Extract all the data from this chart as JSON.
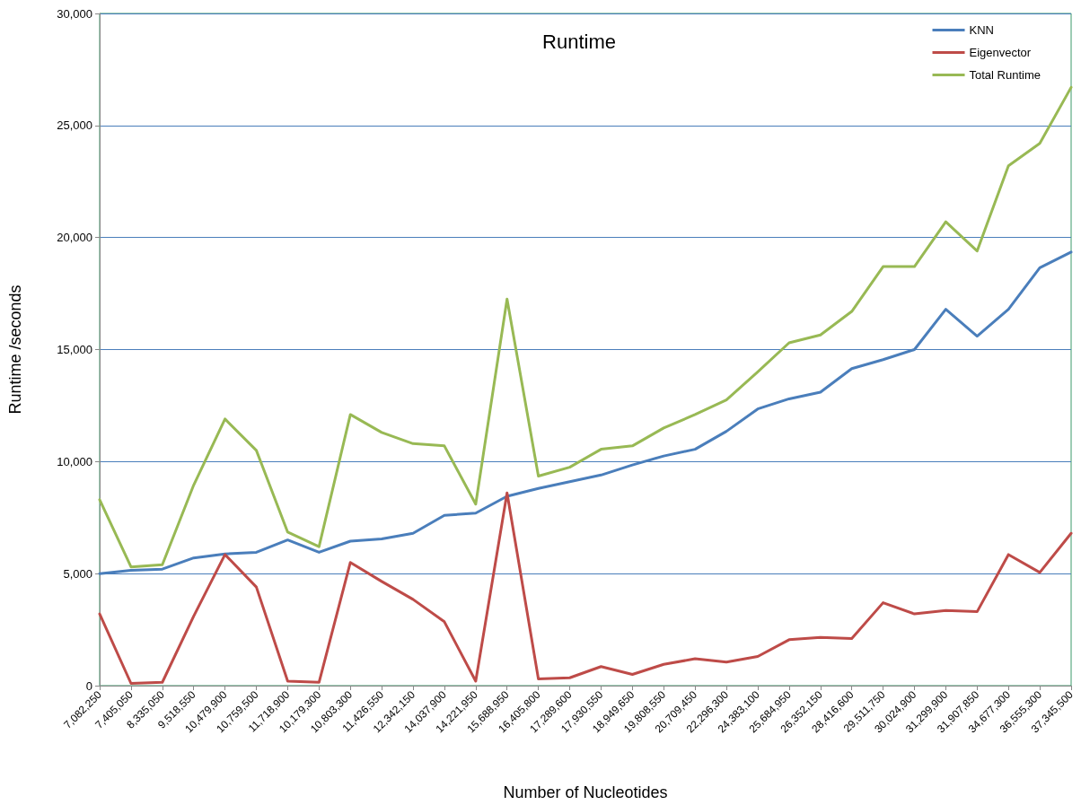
{
  "chart_data": {
    "type": "line",
    "title": "Runtime",
    "xlabel": "Number of Nucleotides",
    "ylabel": "Runtime /seconds",
    "categories": [
      "7,082,250",
      "7,405,050",
      "8,335,050",
      "9,518,550",
      "10,479,900",
      "10,759,500",
      "11,718,900",
      "10,179,300",
      "10,803,300",
      "11,426,550",
      "12,342,150",
      "14,037,900",
      "14,221,950",
      "15,688,950",
      "16,405,800",
      "17,289,600",
      "17,930,550",
      "18,949,650",
      "19,808,550",
      "20,709,450",
      "22,296,300",
      "24,383,100",
      "25,684,950",
      "26,352,150",
      "28,416,600",
      "29,511,750",
      "30,024,900",
      "31,299,900",
      "31,907,850",
      "34,677,300",
      "36,555,300",
      "37,345,500"
    ],
    "series": [
      {
        "name": "KNN",
        "color": "#4a7ebb",
        "values": [
          5000,
          5150,
          5200,
          5700,
          5880,
          5950,
          6500,
          5950,
          6450,
          6550,
          6800,
          7600,
          7700,
          8450,
          8800,
          9100,
          9400,
          9850,
          10250,
          10550,
          11350,
          12350,
          12800,
          13100,
          14150,
          14550,
          15000,
          16800,
          15600,
          16800,
          18650,
          19350
        ]
      },
      {
        "name": "Eigenvector",
        "color": "#be4b48",
        "values": [
          3200,
          100,
          150,
          3100,
          5850,
          4400,
          200,
          150,
          5500,
          4650,
          3850,
          2850,
          200,
          8600,
          300,
          350,
          850,
          500,
          950,
          1200,
          1050,
          1300,
          2050,
          2150,
          2100,
          3700,
          3200,
          3350,
          3300,
          5850,
          5050,
          6800
        ]
      },
      {
        "name": "Total Runtime",
        "color": "#98b954",
        "values": [
          8300,
          5300,
          5400,
          8950,
          11900,
          10500,
          6850,
          6200,
          12100,
          11300,
          10800,
          10700,
          8100,
          17250,
          9350,
          9750,
          10550,
          10700,
          11500,
          12100,
          12750,
          14000,
          15300,
          15650,
          16700,
          18700,
          18700,
          20700,
          19400,
          23200,
          24200,
          26700
        ]
      }
    ],
    "ylim": [
      0,
      30000
    ],
    "yticks": [
      0,
      {
        "value": 5000,
        "label": "5,000"
      },
      {
        "value": 10000,
        "label": "10,000"
      },
      {
        "value": 15000,
        "label": "15,000"
      },
      {
        "value": 20000,
        "label": "20,000"
      },
      {
        "value": 25000,
        "label": "25,000"
      },
      {
        "value": 30000,
        "label": "30,000"
      }
    ],
    "grid": "y",
    "legend": "top right",
    "marker": "none",
    "line_style": "solid"
  }
}
